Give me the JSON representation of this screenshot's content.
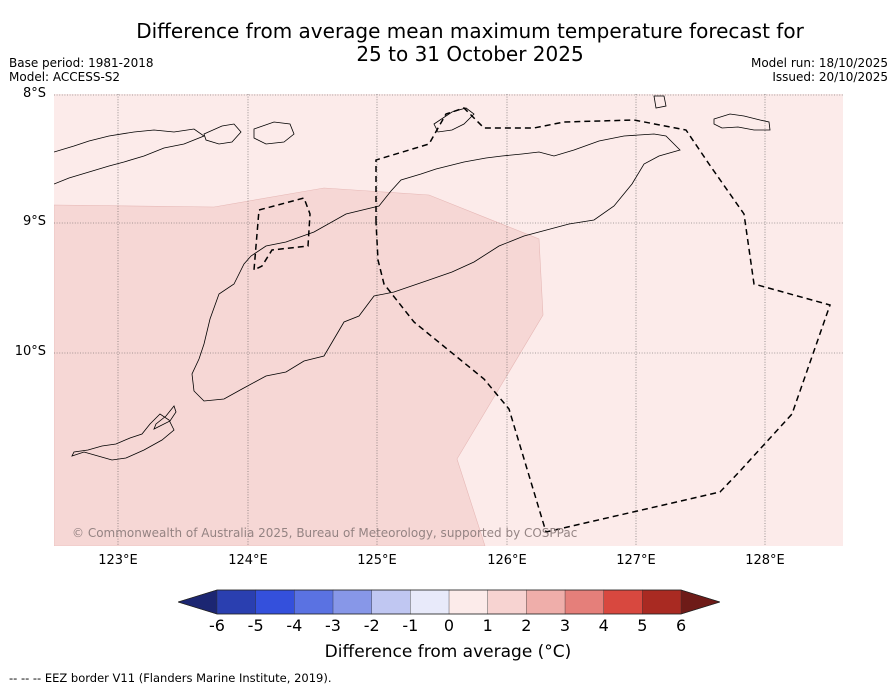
{
  "title_line1": "Difference from average mean maximum temperature forecast for",
  "title_line2": "25 to 31 October 2025",
  "base_period": "Base period: 1981-2018",
  "model": "Model: ACCESS-S2",
  "model_run": "Model run: 18/10/2025",
  "issued": "Issued: 20/10/2025",
  "lat_labels": [
    "8°S",
    "9°S",
    "10°S"
  ],
  "lon_labels": [
    "123°E",
    "124°E",
    "125°E",
    "126°E",
    "127°E",
    "128°E"
  ],
  "copyright": "© Commonwealth of Australia 2025, Bureau of Meteorology, supported by COSPPac",
  "colorbar": {
    "ticks": [
      "-6",
      "-5",
      "-4",
      "-3",
      "-2",
      "-1",
      "0",
      "1",
      "2",
      "3",
      "4",
      "5",
      "6"
    ],
    "colors": [
      "#1c2672",
      "#2a3fb0",
      "#3450dc",
      "#5a72e2",
      "#8797e8",
      "#c0c7f2",
      "#e8eafa",
      "#fcebea",
      "#f7d3d1",
      "#efaeaa",
      "#e57f7a",
      "#d8483f",
      "#a92a22",
      "#6e1b18"
    ],
    "label": "Difference from average (°C)"
  },
  "legend": "--  --  -- EEZ border V11 (Flanders Marine Institute, 2019).",
  "map_data": {
    "lat_range": [
      -11.5,
      -8.0
    ],
    "lon_range": [
      122.5,
      128.6
    ],
    "regions": [
      {
        "category": "0 to 1",
        "color": "#fcebea"
      },
      {
        "category": "1 to 2",
        "color": "#f7d8d6"
      }
    ]
  }
}
